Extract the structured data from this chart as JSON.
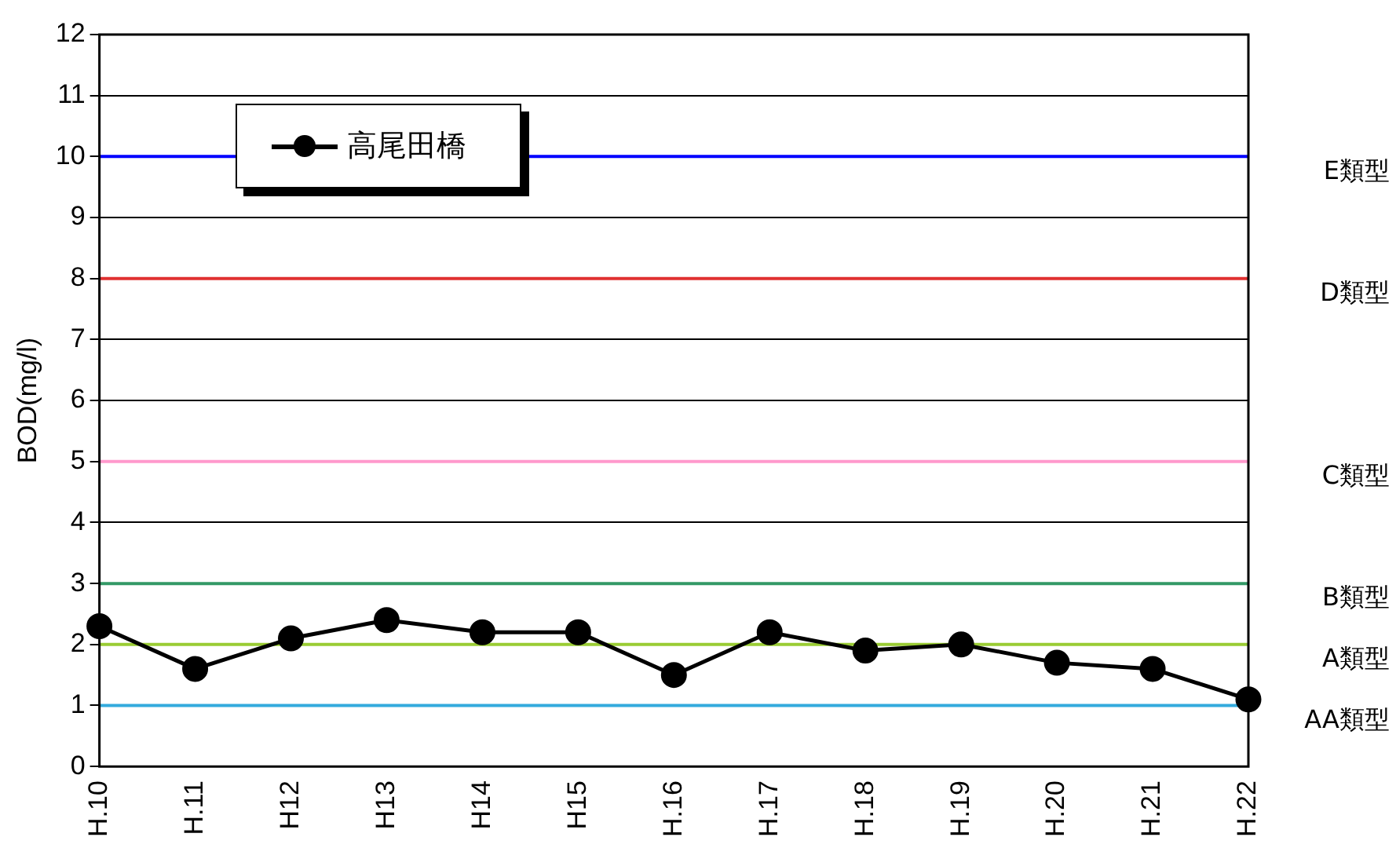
{
  "chart_data": {
    "type": "line",
    "ylabel": "BOD(mg/l)",
    "categories": [
      "H.10",
      "H.11",
      "H12",
      "H13",
      "H14",
      "H15",
      "H.16",
      "H.17",
      "H.18",
      "H.19",
      "H.20",
      "H.21",
      "H.22"
    ],
    "series": [
      {
        "name": "高尾田橋",
        "color": "#000000",
        "values": [
          2.3,
          1.6,
          2.1,
          2.4,
          2.2,
          2.2,
          1.5,
          2.2,
          1.9,
          2.0,
          1.7,
          1.6,
          1.1
        ]
      }
    ],
    "ylim": [
      0,
      12
    ],
    "yticks": [
      0,
      1,
      2,
      3,
      4,
      5,
      6,
      7,
      8,
      9,
      10,
      11,
      12
    ],
    "ref_lines": [
      {
        "axis": "y",
        "value": 10,
        "label": "E類型",
        "color": "#0000ff"
      },
      {
        "axis": "y",
        "value": 8,
        "label": "D類型",
        "color": "#e03030"
      },
      {
        "axis": "y",
        "value": 5,
        "label": "C類型",
        "color": "#ff99cc"
      },
      {
        "axis": "y",
        "value": 3,
        "label": "B類型",
        "color": "#339966"
      },
      {
        "axis": "y",
        "value": 2,
        "label": "A類型",
        "color": "#99cc33"
      },
      {
        "axis": "y",
        "value": 1,
        "label": "AA類型",
        "color": "#33aadd"
      }
    ],
    "grid": "y",
    "legend": "top left",
    "marker": "circle",
    "line_style": "solid"
  }
}
